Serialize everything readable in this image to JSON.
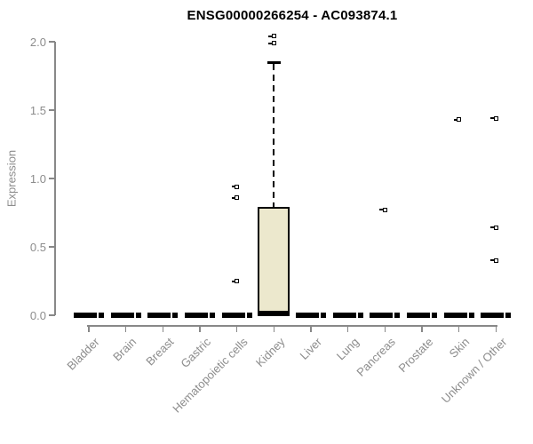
{
  "chart_data": {
    "type": "boxplot",
    "title": "ENSG00000266254 - AC093874.1",
    "xlabel": "",
    "ylabel": "Expression",
    "ylim": [
      0.0,
      2.0
    ],
    "yticks": [
      0.0,
      0.5,
      1.0,
      1.5,
      2.0
    ],
    "ytick_labels": [
      "0.0",
      "0.5",
      "1.0",
      "1.5",
      "2.0"
    ],
    "grid": false,
    "legend": "none",
    "categories": [
      "Bladder",
      "Brain",
      "Breast",
      "Gastric",
      "Hematopoietic cells",
      "Kidney",
      "Liver",
      "Lung",
      "Pancreas",
      "Prostate",
      "Skin",
      "Unknown / Other"
    ],
    "boxes": [
      {
        "category": "Bladder",
        "whisker_low": 0,
        "q1": 0,
        "median": 0,
        "q3": 0,
        "whisker_high": 0,
        "outliers": []
      },
      {
        "category": "Brain",
        "whisker_low": 0,
        "q1": 0,
        "median": 0,
        "q3": 0,
        "whisker_high": 0,
        "outliers": []
      },
      {
        "category": "Breast",
        "whisker_low": 0,
        "q1": 0,
        "median": 0,
        "q3": 0,
        "whisker_high": 0,
        "outliers": []
      },
      {
        "category": "Gastric",
        "whisker_low": 0,
        "q1": 0,
        "median": 0,
        "q3": 0,
        "whisker_high": 0,
        "outliers": []
      },
      {
        "category": "Hematopoietic cells",
        "whisker_low": 0,
        "q1": 0,
        "median": 0,
        "q3": 0,
        "whisker_high": 0,
        "outliers": [
          0.94,
          0.86,
          0.25
        ]
      },
      {
        "category": "Kidney",
        "whisker_low": 0,
        "q1": 0.02,
        "median": 0.01,
        "q3": 0.79,
        "whisker_high": 1.85,
        "outliers": [
          2.04,
          1.99
        ]
      },
      {
        "category": "Liver",
        "whisker_low": 0,
        "q1": 0,
        "median": 0,
        "q3": 0,
        "whisker_high": 0,
        "outliers": []
      },
      {
        "category": "Lung",
        "whisker_low": 0,
        "q1": 0,
        "median": 0,
        "q3": 0,
        "whisker_high": 0,
        "outliers": []
      },
      {
        "category": "Pancreas",
        "whisker_low": 0,
        "q1": 0,
        "median": 0,
        "q3": 0,
        "whisker_high": 0,
        "outliers": [
          0.77
        ]
      },
      {
        "category": "Prostate",
        "whisker_low": 0,
        "q1": 0,
        "median": 0,
        "q3": 0,
        "whisker_high": 0,
        "outliers": []
      },
      {
        "category": "Skin",
        "whisker_low": 0,
        "q1": 0,
        "median": 0,
        "q3": 0,
        "whisker_high": 0,
        "outliers": [
          1.43
        ]
      },
      {
        "category": "Unknown / Other",
        "whisker_low": 0,
        "q1": 0,
        "median": 0,
        "q3": 0,
        "whisker_high": 0,
        "outliers": [
          1.44,
          0.64,
          0.4
        ]
      }
    ],
    "colors": {
      "box_fill": "#ece8cd",
      "box_border": "#000000",
      "median": "#000000",
      "whisker": "#000000",
      "axis": "#888888",
      "tick_label": "#8c8c8c",
      "title": "#000000",
      "background": "#ffffff"
    }
  }
}
